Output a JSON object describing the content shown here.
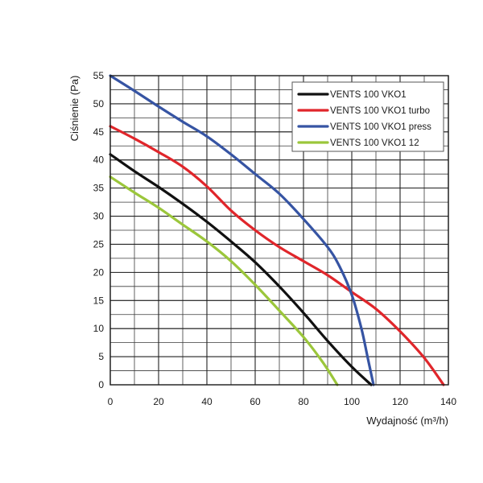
{
  "chart_data": {
    "type": "line",
    "title": "",
    "xlabel": "Wydajność (m³/h)",
    "ylabel": "Ciśnienie (Pa)",
    "xlim": [
      0,
      140
    ],
    "ylim": [
      0,
      55
    ],
    "x_ticks": [
      0,
      20,
      40,
      60,
      80,
      100,
      120,
      140
    ],
    "y_ticks": [
      0,
      5,
      10,
      15,
      20,
      25,
      30,
      35,
      40,
      45,
      50,
      55
    ],
    "x_minor_step": 10,
    "y_minor_step": 2.5,
    "grid": true,
    "legend_position": "top-right",
    "series": [
      {
        "name": "VENTS 100 VKO1",
        "color": "#111111",
        "points": [
          [
            0,
            41
          ],
          [
            10,
            38
          ],
          [
            20,
            35.2
          ],
          [
            30,
            32.2
          ],
          [
            40,
            29
          ],
          [
            50,
            25.5
          ],
          [
            60,
            21.8
          ],
          [
            70,
            17.5
          ],
          [
            80,
            12.8
          ],
          [
            90,
            7.8
          ],
          [
            100,
            3.2
          ],
          [
            108,
            0
          ]
        ]
      },
      {
        "name": "VENTS 100 VKO1 turbo",
        "color": "#e0262b",
        "points": [
          [
            0,
            46
          ],
          [
            10,
            43.8
          ],
          [
            20,
            41.4
          ],
          [
            30,
            38.8
          ],
          [
            40,
            35.3
          ],
          [
            50,
            31
          ],
          [
            60,
            27.5
          ],
          [
            70,
            24.5
          ],
          [
            80,
            22
          ],
          [
            90,
            19.5
          ],
          [
            100,
            16.5
          ],
          [
            110,
            13.5
          ],
          [
            120,
            9.5
          ],
          [
            130,
            4.8
          ],
          [
            138,
            0
          ]
        ]
      },
      {
        "name": "VENTS 100 VKO1 press",
        "color": "#3654a3",
        "points": [
          [
            0,
            55
          ],
          [
            10,
            52.3
          ],
          [
            20,
            49.5
          ],
          [
            30,
            46.8
          ],
          [
            40,
            44.2
          ],
          [
            50,
            41
          ],
          [
            60,
            37.5
          ],
          [
            70,
            34
          ],
          [
            80,
            29.5
          ],
          [
            90,
            24.5
          ],
          [
            95,
            21
          ],
          [
            100,
            16
          ],
          [
            104,
            10
          ],
          [
            106.5,
            5
          ],
          [
            109,
            0
          ]
        ]
      },
      {
        "name": "VENTS 100 VKO1 12",
        "color": "#9bc63b",
        "points": [
          [
            0,
            37
          ],
          [
            10,
            34.2
          ],
          [
            20,
            31.5
          ],
          [
            30,
            28.5
          ],
          [
            40,
            25.5
          ],
          [
            50,
            22
          ],
          [
            60,
            17.8
          ],
          [
            70,
            13.2
          ],
          [
            80,
            8.5
          ],
          [
            88,
            4
          ],
          [
            94,
            0
          ]
        ]
      }
    ]
  }
}
